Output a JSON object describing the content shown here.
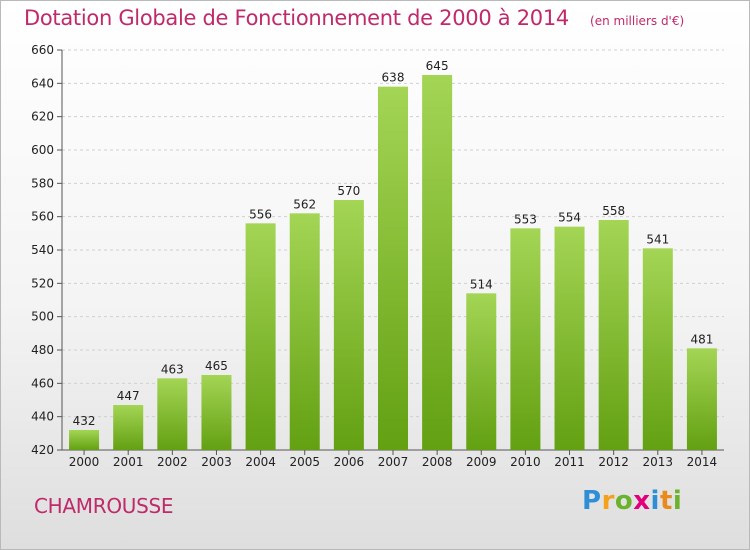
{
  "header": {
    "title": "Dotation Globale de Fonctionnement de 2000 à 2014",
    "unit": "(en milliers d'€)"
  },
  "footer": {
    "place": "CHAMROUSSE",
    "logo": "Proxiti"
  },
  "colors": {
    "title": "#c0296a",
    "bar_light": "#a4d555",
    "bar_dark": "#63a012",
    "grid": "#d0d0d0"
  },
  "chart_data": {
    "type": "bar",
    "title": "Dotation Globale de Fonctionnement de 2000 à 2014",
    "subtitle": "(en milliers d'€)",
    "xlabel": "",
    "ylabel": "",
    "categories": [
      "2000",
      "2001",
      "2002",
      "2003",
      "2004",
      "2005",
      "2006",
      "2007",
      "2008",
      "2009",
      "2010",
      "2011",
      "2012",
      "2013",
      "2014"
    ],
    "values": [
      432,
      447,
      463,
      465,
      556,
      562,
      570,
      638,
      645,
      514,
      553,
      554,
      558,
      541,
      481
    ],
    "ylim": [
      420,
      660
    ],
    "yticks": [
      420,
      440,
      460,
      480,
      500,
      520,
      540,
      560,
      580,
      600,
      620,
      640,
      660
    ],
    "grid": true,
    "legend": "none"
  }
}
